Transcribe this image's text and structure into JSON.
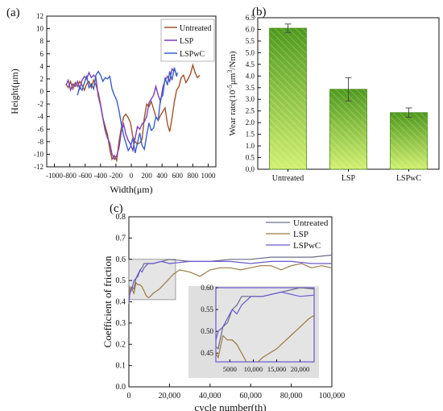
{
  "panel_labels": {
    "a": "(a)",
    "b": "(b)",
    "c": "(c)"
  },
  "colors": {
    "untreated": "#a0522d",
    "lsp": "#7b3fb8",
    "lspwc": "#3a5fc8",
    "bar_fill": "#86c442",
    "bar_dark": "#5e9a25",
    "inset_bg": "#dcdcdc"
  },
  "chart_data": [
    {
      "id": "a",
      "type": "line",
      "xlabel": "Width(μm)",
      "ylabel": "Height(μm)",
      "xlim": [
        -1100,
        1100
      ],
      "ylim": [
        -12,
        12
      ],
      "xticks": [
        -1000,
        -800,
        -600,
        -400,
        -200,
        0,
        200,
        400,
        600,
        800,
        1000
      ],
      "yticks": [
        -12,
        -10,
        -8,
        -6,
        -4,
        -2,
        0,
        2,
        4,
        6,
        8,
        10,
        12
      ],
      "legend": "top-right",
      "series": [
        {
          "name": "Untreated",
          "color": "#a0522d",
          "x": [
            -850,
            -820,
            -790,
            -760,
            -730,
            -700,
            -670,
            -640,
            -610,
            -580,
            -550,
            -520,
            -490,
            -460,
            -430,
            -400,
            -370,
            -340,
            -310,
            -280,
            -250,
            -220,
            -190,
            -160,
            -130,
            -100,
            -70,
            -40,
            -10,
            20,
            50,
            80,
            110,
            140,
            170,
            200,
            230,
            260,
            290,
            320,
            350,
            380,
            410,
            440,
            470,
            500,
            530,
            560,
            590,
            620,
            650,
            680,
            710,
            740,
            770,
            800,
            830,
            860,
            890
          ],
          "y": [
            1.2,
            0.6,
            1.6,
            0.4,
            1.4,
            0.8,
            1.6,
            1.0,
            0.2,
            1.2,
            1.6,
            0.6,
            1.8,
            1.0,
            -0.2,
            -2.0,
            -4.2,
            -5.5,
            -6.8,
            -9.2,
            -10.8,
            -10.2,
            -11.0,
            -8.0,
            -5.8,
            -4.0,
            -3.6,
            -4.2,
            -5.0,
            -7.2,
            -8.0,
            -8.4,
            -8.2,
            -7.6,
            -4.2,
            -2.0,
            -2.4,
            -1.6,
            -2.8,
            -4.0,
            -4.6,
            -3.8,
            -3.2,
            -2.6,
            -5.2,
            -6.4,
            -4.2,
            -1.6,
            0.2,
            0.8,
            2.2,
            2.6,
            1.4,
            2.0,
            2.8,
            4.2,
            3.0,
            2.2,
            2.6
          ]
        },
        {
          "name": "LSP",
          "color": "#7b3fb8",
          "x": [
            -850,
            -820,
            -790,
            -760,
            -730,
            -700,
            -670,
            -640,
            -610,
            -580,
            -550,
            -520,
            -490,
            -460,
            -430,
            -400,
            -370,
            -340,
            -310,
            -280,
            -250,
            -220,
            -190,
            -160,
            -130,
            -100,
            -70,
            -40,
            -10,
            20,
            50,
            80,
            110,
            140,
            170,
            200,
            230,
            260,
            290,
            320,
            350,
            380,
            410,
            440,
            470,
            500,
            530,
            560
          ],
          "y": [
            1.0,
            1.8,
            0.2,
            1.2,
            0.8,
            1.6,
            0.4,
            1.8,
            2.4,
            2.0,
            3.0,
            2.2,
            2.6,
            2.2,
            -0.8,
            -2.2,
            -4.2,
            -6.2,
            -7.4,
            -8.2,
            -10.0,
            -10.8,
            -10.2,
            -9.0,
            -6.4,
            -5.2,
            -6.8,
            -7.8,
            -8.4,
            -9.4,
            -7.4,
            -5.6,
            -6.0,
            -5.2,
            -4.8,
            -4.0,
            -1.8,
            -1.2,
            -0.6,
            0.8,
            -0.6,
            -1.6,
            0.6,
            1.8,
            2.4,
            1.6,
            3.6,
            3.2
          ]
        },
        {
          "name": "LSPwC",
          "color": "#3a5fc8",
          "x": [
            -700,
            -670,
            -640,
            -610,
            -580,
            -550,
            -520,
            -490,
            -460,
            -430,
            -400,
            -370,
            -340,
            -310,
            -280,
            -250,
            -220,
            -190,
            -160,
            -130,
            -100,
            -70,
            -40,
            -10,
            20,
            50,
            80,
            110,
            140,
            170,
            200,
            230,
            260,
            290,
            320,
            350,
            380,
            410,
            440,
            470,
            500,
            530,
            560,
            590,
            600
          ],
          "y": [
            -0.6,
            0.8,
            0.2,
            1.4,
            2.4,
            0.6,
            1.2,
            0.4,
            2.6,
            3.2,
            2.6,
            1.6,
            2.2,
            2.0,
            2.4,
            0.4,
            -0.6,
            -1.4,
            -3.0,
            -5.2,
            -7.0,
            -8.2,
            -9.4,
            -8.8,
            -7.4,
            -9.8,
            -8.2,
            -6.6,
            -8.6,
            -9.2,
            -7.0,
            -5.0,
            -6.2,
            -5.8,
            -4.0,
            -4.6,
            -1.2,
            -0.6,
            2.2,
            1.0,
            3.2,
            1.8,
            3.8,
            2.4,
            3.0
          ]
        }
      ]
    },
    {
      "id": "b",
      "type": "bar",
      "categories": [
        "Untreated",
        "LSP",
        "LSPwC"
      ],
      "values": [
        6.05,
        3.43,
        2.43
      ],
      "errors": [
        0.18,
        0.5,
        0.2
      ],
      "ylabel_prefix": "Wear  rate(10",
      "ylabel_sup1": "-5",
      "ylabel_mid": "μm",
      "ylabel_sup2": "3",
      "ylabel_suffix": "/Nm)",
      "ylim": [
        0,
        6.5
      ],
      "yticks": [
        "0.0",
        "0.5",
        "1.0",
        "1.5",
        "2.0",
        "2.5",
        "3.0",
        "3.5",
        "4.0",
        "4.5",
        "5.0",
        "5.5",
        "6.0",
        "6.5"
      ]
    },
    {
      "id": "c",
      "type": "line",
      "xlabel": "cycle number(th)",
      "ylabel": "Coefficient of friction",
      "xlim": [
        0,
        100000
      ],
      "ylim": [
        0,
        0.8
      ],
      "xtick_labels": [
        "0",
        "20,000",
        "40,000",
        "60,000",
        "80,000",
        "100,000"
      ],
      "xtick_values": [
        0,
        20000,
        40000,
        60000,
        80000,
        100000
      ],
      "ytick_labels": [
        "0.0",
        "0.1",
        "0.2",
        "0.3",
        "0.4",
        "0.5",
        "0.6",
        "0.7",
        "0.8"
      ],
      "legend": "top-right",
      "highlight_box": {
        "x": [
          0,
          23000
        ],
        "y": [
          0.41,
          0.6
        ]
      },
      "series": [
        {
          "name": "Untreated",
          "color": "#6b6b8a",
          "x": [
            0,
            500,
            1500,
            2500,
            3500,
            4500,
            5500,
            6500,
            7500,
            8500,
            9500,
            12000,
            16000,
            20000,
            30000,
            40000,
            50000,
            60000,
            70000,
            80000,
            90000,
            100000
          ],
          "y": [
            0.39,
            0.45,
            0.47,
            0.46,
            0.51,
            0.52,
            0.55,
            0.56,
            0.58,
            0.58,
            0.58,
            0.58,
            0.59,
            0.6,
            0.59,
            0.59,
            0.6,
            0.6,
            0.61,
            0.61,
            0.61,
            0.62
          ]
        },
        {
          "name": "LSP",
          "color": "#9a7a45",
          "x": [
            0,
            500,
            1500,
            2500,
            3500,
            4500,
            5500,
            6500,
            7500,
            8500,
            9500,
            10000,
            12000,
            15000,
            18000,
            20000,
            22000,
            25000,
            30000,
            35000,
            40000,
            45000,
            50000,
            55000,
            60000,
            65000,
            70000,
            75000,
            80000,
            85000,
            90000,
            95000,
            100000
          ],
          "y": [
            0.42,
            0.47,
            0.46,
            0.44,
            0.49,
            0.48,
            0.48,
            0.47,
            0.45,
            0.43,
            0.42,
            0.42,
            0.44,
            0.46,
            0.49,
            0.51,
            0.53,
            0.55,
            0.54,
            0.52,
            0.55,
            0.56,
            0.56,
            0.55,
            0.56,
            0.57,
            0.57,
            0.55,
            0.57,
            0.58,
            0.56,
            0.57,
            0.56
          ]
        },
        {
          "name": "LSPwC",
          "color": "#6a5acd",
          "x": [
            0,
            500,
            1500,
            2500,
            3500,
            4500,
            5500,
            6500,
            7500,
            8500,
            9500,
            12000,
            16000,
            20000,
            30000,
            40000,
            50000,
            60000,
            70000,
            80000,
            90000,
            100000
          ],
          "y": [
            0.4,
            0.44,
            0.46,
            0.5,
            0.51,
            0.53,
            0.55,
            0.54,
            0.56,
            0.57,
            0.58,
            0.58,
            0.59,
            0.58,
            0.59,
            0.59,
            0.59,
            0.58,
            0.59,
            0.59,
            0.58,
            0.58
          ]
        }
      ],
      "inset": {
        "xlim": [
          2000,
          23000
        ],
        "ylim": [
          0.43,
          0.6
        ],
        "xtick_labels": [
          "5000",
          "10,000",
          "15,000",
          "20,000"
        ],
        "xtick_values": [
          5000,
          10000,
          15000,
          20000
        ],
        "ytick_labels": [
          "0.45",
          "0.50",
          "0.55",
          "0.60"
        ],
        "ytick_values": [
          0.45,
          0.5,
          0.55,
          0.6
        ]
      }
    }
  ]
}
